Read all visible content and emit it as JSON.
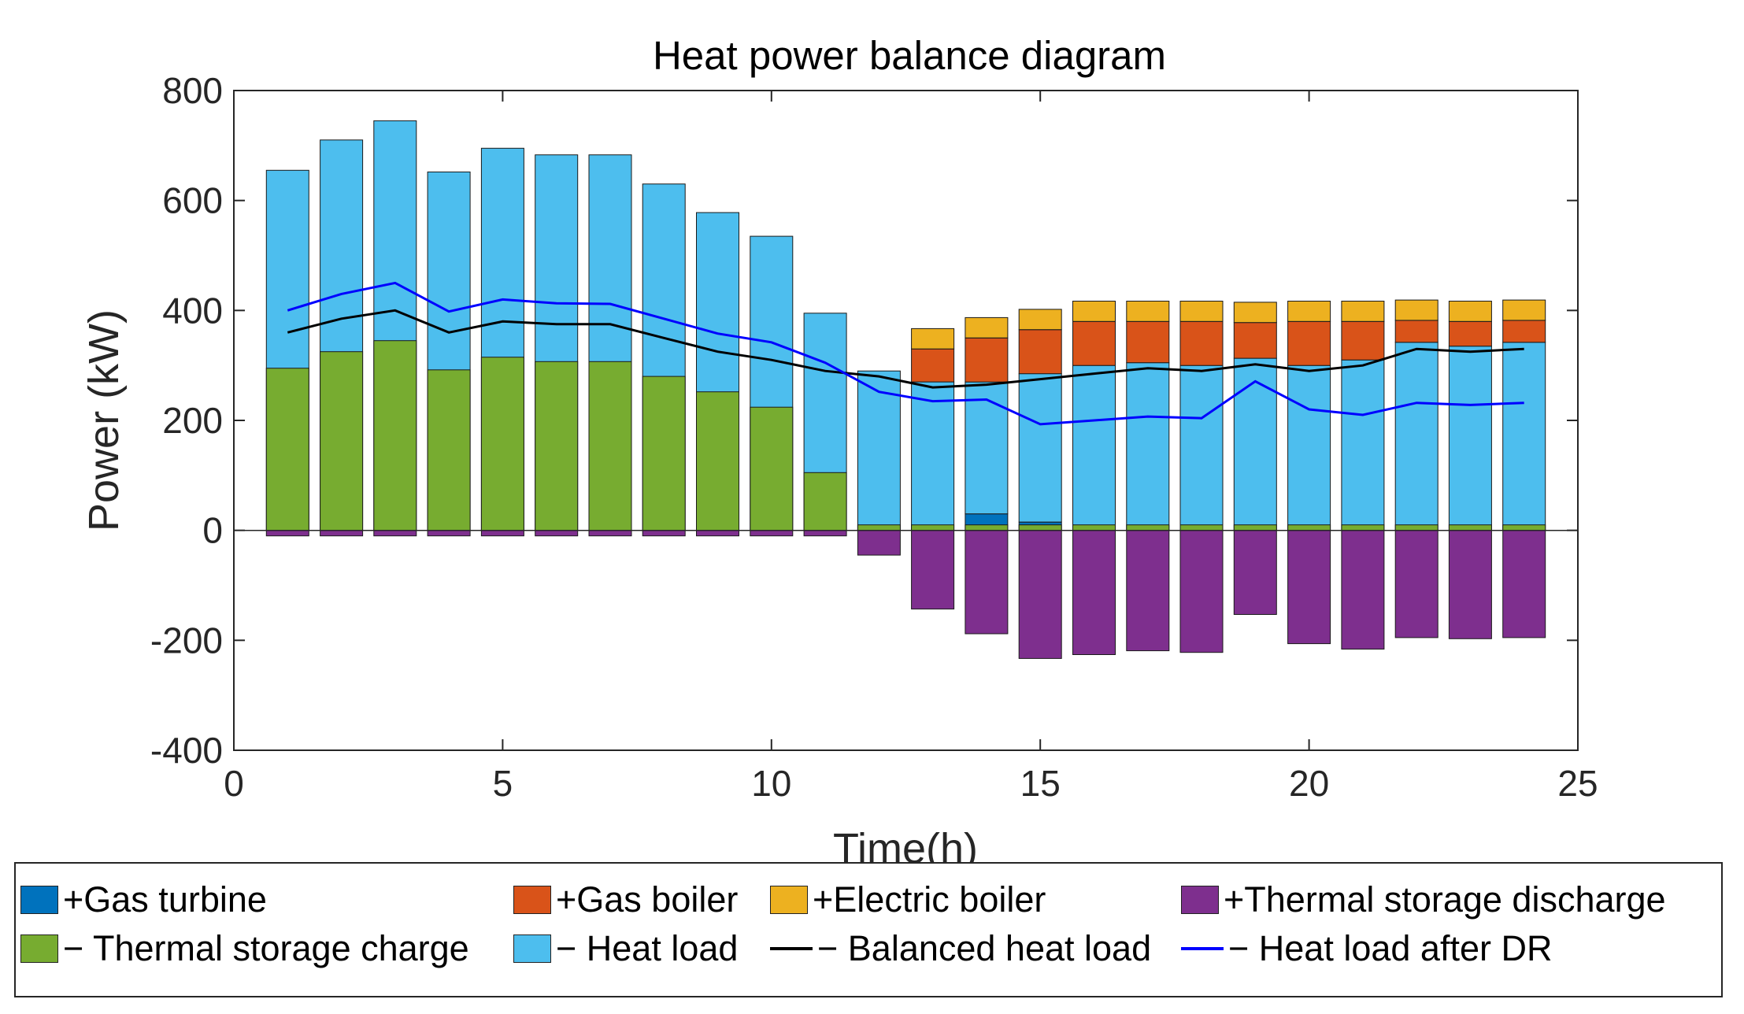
{
  "chart_data": {
    "type": "bar",
    "title": "Heat power balance diagram",
    "xlabel": "Time(h)",
    "ylabel": "Power (kW)",
    "xlim": [
      0,
      25
    ],
    "ylim": [
      -400,
      800
    ],
    "xticks": [
      0,
      5,
      10,
      15,
      20,
      25
    ],
    "yticks": [
      -400,
      -200,
      0,
      200,
      400,
      600,
      800
    ],
    "x": [
      1,
      2,
      3,
      4,
      5,
      6,
      7,
      8,
      9,
      10,
      11,
      12,
      13,
      14,
      15,
      16,
      17,
      18,
      19,
      20,
      21,
      22,
      23,
      24
    ],
    "stack_order": "gas_turbine, heat_load_pos, gas_boiler, electric_boiler stack upward from 0; thermal_charge drawn from 0 in front; thermal_discharge stacks downward",
    "series": [
      {
        "name": "+Gas turbine",
        "key": "gas_turbine",
        "color": "#0072BD",
        "values": [
          0,
          0,
          0,
          0,
          0,
          0,
          0,
          0,
          0,
          0,
          0,
          0,
          0,
          30,
          15,
          5,
          0,
          0,
          0,
          0,
          0,
          0,
          0,
          0
        ]
      },
      {
        "name": "+Gas boiler",
        "key": "gas_boiler",
        "color": "#D95319",
        "values": [
          0,
          0,
          0,
          0,
          0,
          0,
          0,
          0,
          0,
          0,
          0,
          0,
          60,
          80,
          80,
          80,
          75,
          80,
          65,
          80,
          70,
          40,
          45,
          40
        ]
      },
      {
        "name": "+Electric boiler",
        "key": "electric_boiler",
        "color": "#EDB120",
        "values": [
          0,
          0,
          0,
          0,
          0,
          0,
          0,
          0,
          0,
          0,
          0,
          0,
          37,
          37,
          37,
          37,
          37,
          37,
          37,
          37,
          37,
          37,
          37,
          37
        ]
      },
      {
        "name": "+Thermal storage discharge",
        "key": "thermal_discharge",
        "color": "#7E2F8E",
        "values": [
          10,
          10,
          10,
          10,
          10,
          10,
          10,
          10,
          10,
          10,
          10,
          45,
          143,
          188,
          233,
          226,
          219,
          222,
          153,
          206,
          216,
          195,
          197,
          195
        ]
      },
      {
        "name": "− Thermal storage charge",
        "key": "thermal_charge",
        "color": "#77AC30",
        "values": [
          295,
          325,
          345,
          292,
          315,
          307,
          307,
          280,
          252,
          224,
          105,
          10,
          10,
          10,
          10,
          10,
          10,
          10,
          10,
          10,
          10,
          10,
          10,
          10
        ]
      },
      {
        "name": "− Heat load",
        "key": "heat_load",
        "color": "#4DBEEE",
        "values": [
          655,
          710,
          745,
          652,
          695,
          683,
          683,
          630,
          578,
          535,
          395,
          290,
          270,
          270,
          285,
          300,
          305,
          300,
          313,
          300,
          310,
          342,
          335,
          342
        ]
      },
      {
        "name": "− Balanced heat load",
        "key": "balanced_load",
        "color": "#000000",
        "type": "line",
        "values": [
          360,
          385,
          400,
          360,
          380,
          375,
          375,
          350,
          325,
          310,
          290,
          280,
          260,
          265,
          275,
          285,
          295,
          290,
          302,
          290,
          300,
          330,
          325,
          330
        ]
      },
      {
        "name": "− Heat load after DR",
        "key": "load_after_dr",
        "color": "#0000FF",
        "type": "line",
        "values": [
          400,
          430,
          450,
          398,
          420,
          413,
          412,
          385,
          358,
          342,
          305,
          252,
          235,
          238,
          193,
          200,
          207,
          204,
          271,
          220,
          210,
          232,
          228,
          232
        ]
      }
    ],
    "legend": {
      "placement": "bottom-outside",
      "columns": 4
    }
  }
}
